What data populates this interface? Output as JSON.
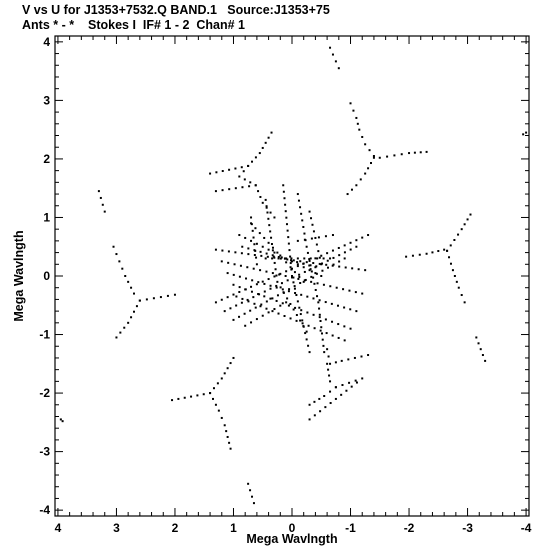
{
  "header": {
    "line1": "V vs U for J1353+7532.Q BAND.1   Source:J1353+75",
    "line2": "Ants * - *    Stokes I  IF# 1 - 2  Chan# 1"
  },
  "chart_data": {
    "type": "scatter",
    "xlabel": "Mega Wavlngth",
    "ylabel": "Mega Wavlngth",
    "xlim": [
      4.05,
      -4.05
    ],
    "ylim": [
      -4.1,
      4.1
    ],
    "x_ticks": [
      4,
      3,
      2,
      1,
      0,
      -1,
      -2,
      -3,
      -4
    ],
    "x_tick_labels": [
      "4",
      "3",
      "2",
      "1",
      "0",
      "-1",
      "-2",
      "-3",
      "-4"
    ],
    "y_ticks": [
      4,
      3,
      2,
      1,
      0,
      -1,
      -2,
      -3,
      -4
    ],
    "y_tick_labels": [
      "4",
      "3",
      "2",
      "1",
      "0",
      "-1",
      "-2",
      "-3",
      "-4"
    ],
    "grid": false,
    "marker_color": "#000000",
    "series": [
      {
        "tracks": [
          [
            [
              -0.65,
              3.9
            ],
            [
              -0.8,
              3.55
            ]
          ],
          [
            [
              -1.0,
              2.95
            ],
            [
              -1.1,
              2.7
            ],
            [
              -1.15,
              2.5
            ],
            [
              -1.25,
              2.25
            ],
            [
              -1.4,
              2.05
            ],
            [
              -1.5,
              2.02
            ],
            [
              -1.75,
              2.06
            ],
            [
              -2.0,
              2.1
            ],
            [
              -2.3,
              2.12
            ]
          ],
          [
            [
              -1.4,
              2.02
            ],
            [
              -1.25,
              1.75
            ],
            [
              -1.1,
              1.55
            ],
            [
              -0.95,
              1.4
            ]
          ],
          [
            [
              -4.0,
              2.45
            ],
            [
              -3.95,
              2.42
            ]
          ],
          [
            [
              0.35,
              2.45
            ],
            [
              0.55,
              2.1
            ],
            [
              0.75,
              1.88
            ],
            [
              1.4,
              1.75
            ]
          ],
          [
            [
              0.75,
              1.88
            ],
            [
              0.9,
              1.7
            ],
            [
              0.62,
              1.55
            ],
            [
              1.3,
              1.45
            ]
          ],
          [
            [
              0.62,
              1.55
            ],
            [
              0.5,
              1.25
            ],
            [
              0.3,
              1.0
            ]
          ],
          [
            [
              3.3,
              1.45
            ],
            [
              3.2,
              1.1
            ]
          ],
          [
            [
              3.05,
              0.5
            ],
            [
              2.95,
              0.25
            ],
            [
              2.85,
              0.0
            ],
            [
              2.7,
              -0.3
            ],
            [
              2.6,
              -0.42
            ],
            [
              2.0,
              -0.32
            ]
          ],
          [
            [
              2.6,
              -0.42
            ],
            [
              2.8,
              -0.8
            ],
            [
              3.0,
              -1.05
            ]
          ],
          [
            [
              -1.95,
              0.33
            ],
            [
              -2.3,
              0.38
            ],
            [
              -2.6,
              0.45
            ],
            [
              -2.65,
              0.43
            ],
            [
              -2.9,
              0.8
            ],
            [
              -3.05,
              1.05
            ]
          ],
          [
            [
              -2.65,
              0.43
            ],
            [
              -2.75,
              0.1
            ],
            [
              -2.85,
              -0.2
            ],
            [
              -2.95,
              -0.45
            ]
          ],
          [
            [
              -3.15,
              -1.05
            ],
            [
              -3.3,
              -1.45
            ]
          ],
          [
            [
              1.0,
              -1.4
            ],
            [
              1.2,
              -1.75
            ],
            [
              1.4,
              -2.0
            ],
            [
              2.05,
              -2.12
            ]
          ],
          [
            [
              1.4,
              -2.0
            ],
            [
              1.25,
              -2.3
            ],
            [
              1.15,
              -2.55
            ],
            [
              1.05,
              -2.95
            ]
          ],
          [
            [
              3.95,
              -2.45
            ],
            [
              3.92,
              -2.48
            ]
          ],
          [
            [
              -0.6,
              -1.25
            ],
            [
              -0.65,
              -1.5
            ],
            [
              -0.85,
              -1.45
            ],
            [
              -1.3,
              -1.35
            ]
          ],
          [
            [
              -0.6,
              -1.5
            ],
            [
              -0.65,
              -1.8
            ],
            [
              -0.75,
              -1.9
            ],
            [
              -1.2,
              -1.75
            ],
            [
              -0.3,
              -2.45
            ]
          ],
          [
            [
              -0.75,
              -1.9
            ],
            [
              -0.55,
              -2.05
            ],
            [
              -0.3,
              -2.2
            ]
          ],
          [
            [
              0.75,
              -3.55
            ],
            [
              0.65,
              -3.88
            ]
          ]
        ]
      },
      {
        "center_tracks": [
          [
            [
              1.3,
              0.45
            ],
            [
              -1.25,
              0.1
            ]
          ],
          [
            [
              1.2,
              0.25
            ],
            [
              -1.2,
              -0.3
            ]
          ],
          [
            [
              1.1,
              0.05
            ],
            [
              -1.1,
              -0.6
            ]
          ],
          [
            [
              1.0,
              -0.15
            ],
            [
              -1.0,
              -0.9
            ]
          ],
          [
            [
              0.95,
              -0.35
            ],
            [
              -0.9,
              -1.1
            ]
          ],
          [
            [
              1.3,
              -0.45
            ],
            [
              -1.3,
              0.7
            ]
          ],
          [
            [
              1.15,
              -0.6
            ],
            [
              -1.1,
              0.5
            ]
          ],
          [
            [
              1.0,
              -0.75
            ],
            [
              -0.9,
              0.3
            ]
          ],
          [
            [
              0.45,
              1.3
            ],
            [
              0.25,
              -0.1
            ],
            [
              -0.25,
              -0.95
            ]
          ],
          [
            [
              0.15,
              1.55
            ],
            [
              0.0,
              0.0
            ],
            [
              -0.3,
              -1.3
            ]
          ],
          [
            [
              -0.1,
              1.4
            ],
            [
              -0.25,
              0.5
            ],
            [
              -0.45,
              -0.45
            ],
            [
              -0.55,
              -1.3
            ]
          ],
          [
            [
              -0.3,
              1.1
            ],
            [
              -0.5,
              0.2
            ]
          ],
          [
            [
              0.7,
              1.0
            ],
            [
              0.6,
              0.2
            ]
          ],
          [
            [
              0.9,
              0.7
            ],
            [
              -0.5,
              0.0
            ]
          ],
          [
            [
              0.85,
              0.5
            ],
            [
              -0.4,
              0.15
            ]
          ],
          [
            [
              0.8,
              -0.85
            ],
            [
              0.1,
              -0.45
            ]
          ],
          [
            [
              0.7,
              0.9
            ],
            [
              -0.2,
              -0.1
            ]
          ],
          [
            [
              -0.1,
              0.6
            ],
            [
              -0.7,
              0.7
            ]
          ],
          [
            [
              0.45,
              0.3
            ],
            [
              -0.65,
              0.3
            ]
          ]
        ]
      }
    ]
  }
}
